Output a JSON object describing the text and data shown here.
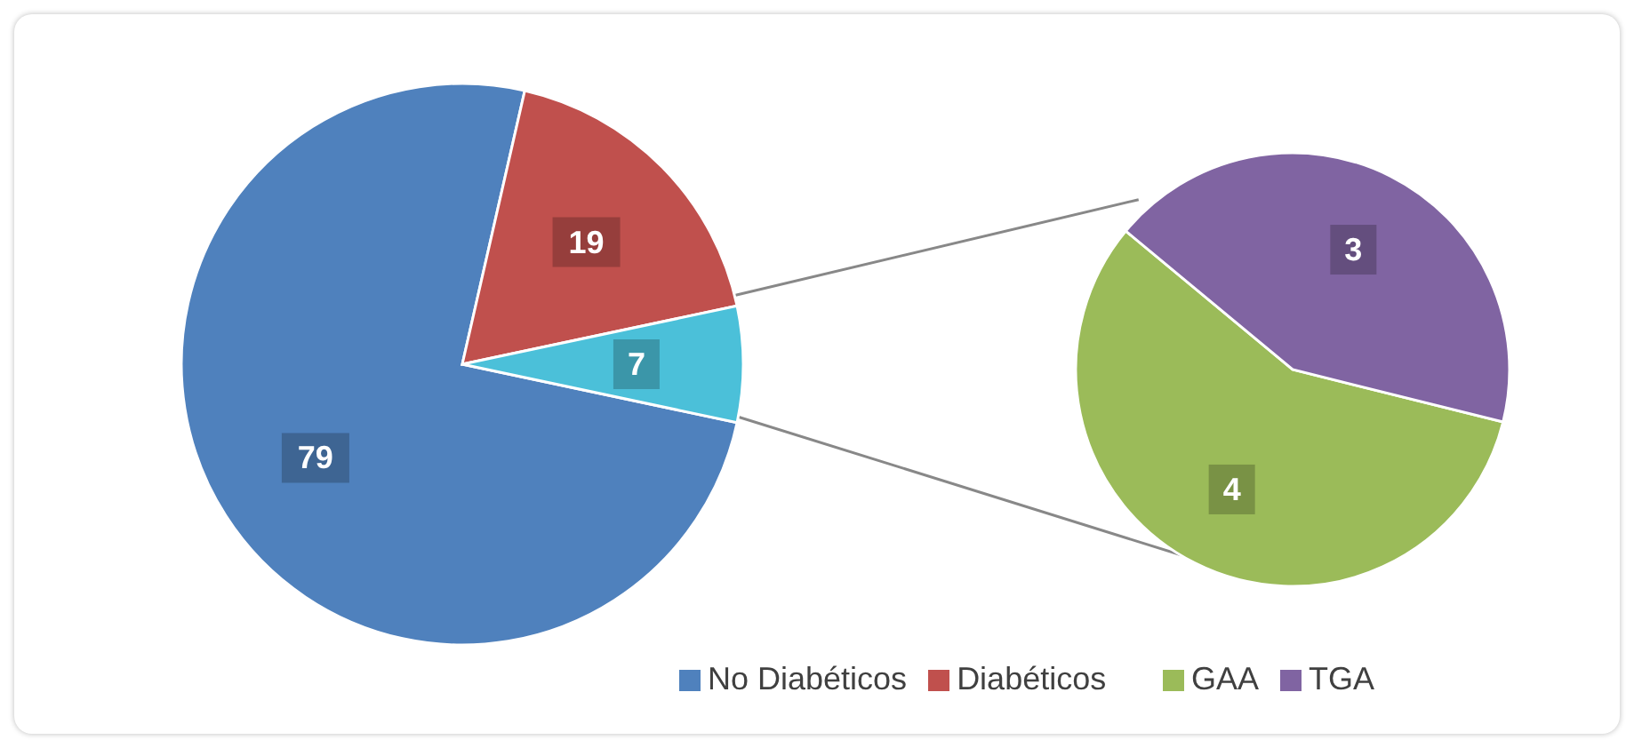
{
  "chart_data": [
    {
      "type": "pie",
      "categories": [
        "No Diabéticos",
        "Diabéticos",
        null
      ],
      "values": [
        79,
        19,
        7
      ],
      "colors": [
        "#4f81bd",
        "#c0504d",
        "#4bc0d9"
      ],
      "data_labels": true,
      "legend": "bottom right"
    },
    {
      "type": "pie",
      "categories": [
        "GAA",
        "TGA"
      ],
      "values": [
        4,
        3
      ],
      "colors": [
        "#9bbb59",
        "#8064a2"
      ],
      "data_labels": true,
      "legend": "bottom"
    }
  ]
}
